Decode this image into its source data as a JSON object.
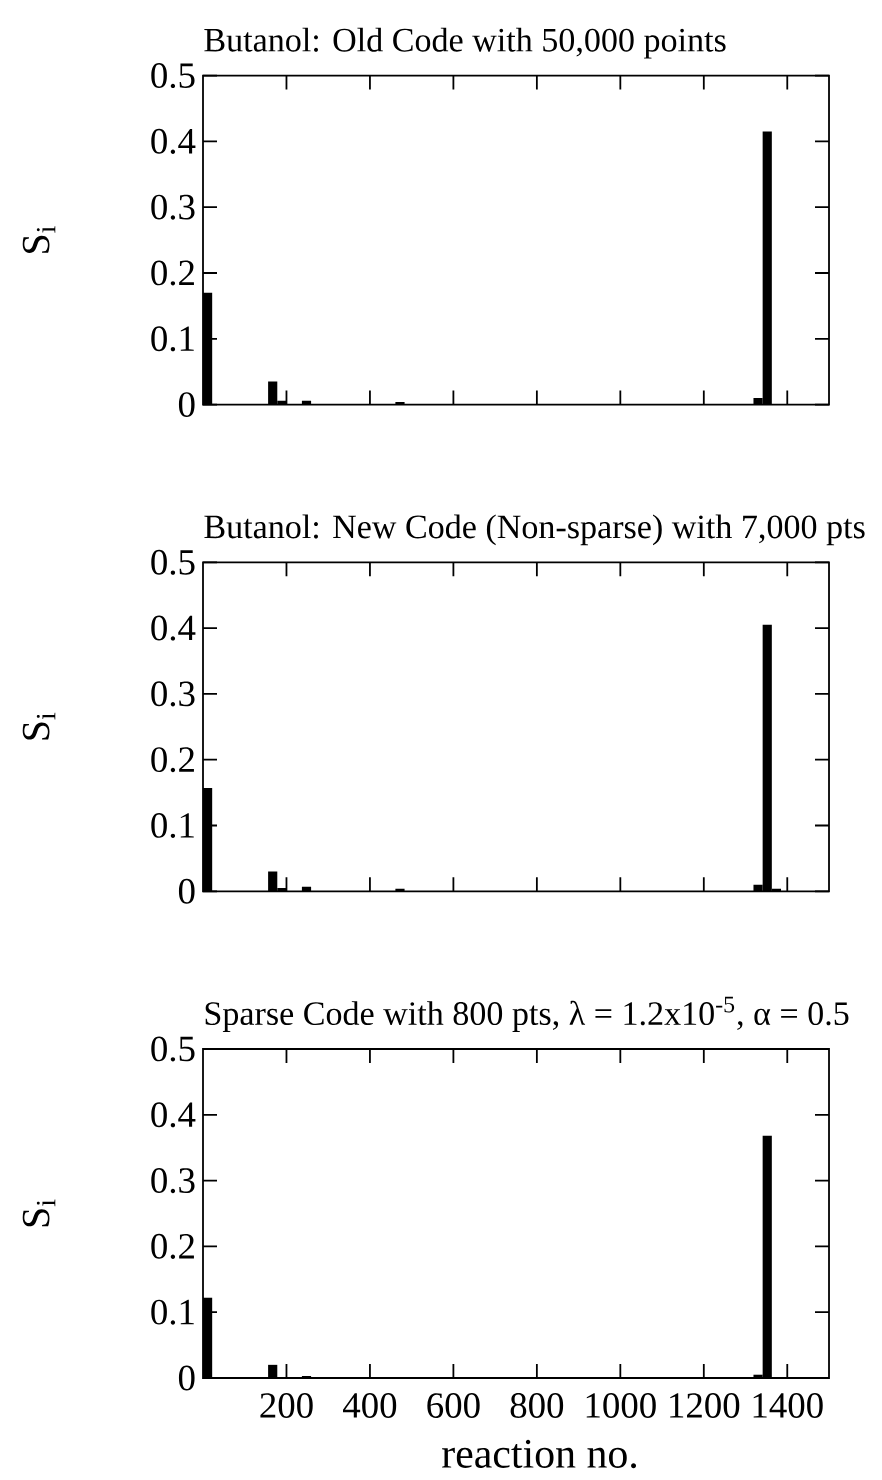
{
  "chart_data": [
    {
      "type": "bar",
      "title": "Butanol: Old Code with 50,000 points",
      "ylabel": "S$_{i}$",
      "x": [
        11,
        167,
        189,
        248,
        472,
        1330,
        1352
      ],
      "values": [
        0.17,
        0.035,
        0.006,
        0.006,
        0.004,
        0.01,
        0.415
      ],
      "color": "#000000",
      "xlim": [
        0,
        1500
      ],
      "xticks": [
        200,
        400,
        600,
        800,
        1000,
        1200,
        1400
      ],
      "ylim": [
        0,
        0.5
      ],
      "yticks": [
        0,
        0.1,
        0.2,
        0.3,
        0.4,
        0.5
      ],
      "tick_labels": "y"
    },
    {
      "type": "bar",
      "title": "Butanol: New Code (Non-sparse) with 7,000 pts",
      "ylabel": "S$_{i}$",
      "x": [
        11,
        167,
        189,
        248,
        472,
        1330,
        1352,
        1374
      ],
      "values": [
        0.157,
        0.03,
        0.005,
        0.007,
        0.004,
        0.01,
        0.405,
        0.004
      ],
      "color": "#000000",
      "xlim": [
        0,
        1500
      ],
      "xticks": [
        200,
        400,
        600,
        800,
        1000,
        1200,
        1400
      ],
      "ylim": [
        0,
        0.5
      ],
      "yticks": [
        0,
        0.1,
        0.2,
        0.3,
        0.4,
        0.5
      ],
      "tick_labels": "y"
    },
    {
      "type": "bar",
      "title": "Sparse Code with 800 pts, λ = 1.2x10$^{-5}$, α = 0.5",
      "xlabel": "reaction no.",
      "ylabel": "S$_{i}$",
      "x": [
        11,
        167,
        248,
        1330,
        1352
      ],
      "values": [
        0.122,
        0.02,
        0.003,
        0.005,
        0.368
      ],
      "color": "#000000",
      "xlim": [
        0,
        1500
      ],
      "xticks": [
        200,
        400,
        600,
        800,
        1000,
        1200,
        1400
      ],
      "ylim": [
        0,
        0.5
      ],
      "yticks": [
        0,
        0.1,
        0.2,
        0.3,
        0.4,
        0.5
      ]
    }
  ]
}
